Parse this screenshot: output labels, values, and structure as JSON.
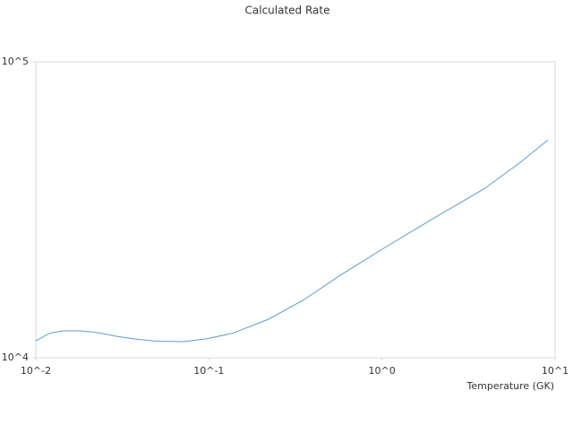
{
  "chart_data": {
    "type": "line",
    "title": "Calculated Rate",
    "x_label": "Temperature (GK)",
    "x_log": true,
    "y_log": true,
    "xlim": [
      0.01,
      10
    ],
    "ylim": [
      10000,
      100000
    ],
    "xticks": [
      {
        "value": 0.01,
        "label": "10^-2"
      },
      {
        "value": 0.1,
        "label": "10^-1"
      },
      {
        "value": 1,
        "label": "10^0"
      },
      {
        "value": 10,
        "label": "10^1"
      }
    ],
    "yticks": [
      {
        "value": 10000,
        "label": "10^4"
      },
      {
        "value": 100000,
        "label": "10^5"
      }
    ],
    "x": [
      0.01,
      0.012,
      0.0143,
      0.0182,
      0.023,
      0.0292,
      0.0371,
      0.0499,
      0.0714,
      0.0962,
      0.137,
      0.221,
      0.356,
      0.574,
      1.04,
      2.13,
      3.86,
      6.21,
      9.1
    ],
    "series": [
      {
        "color": "#5b9bd5",
        "values": [
          11400,
          12100,
          12330,
          12330,
          12160,
          11820,
          11580,
          11380,
          11340,
          11580,
          12100,
          13500,
          15740,
          19010,
          23590,
          30330,
          37130,
          45460,
          54500
        ]
      }
    ]
  }
}
